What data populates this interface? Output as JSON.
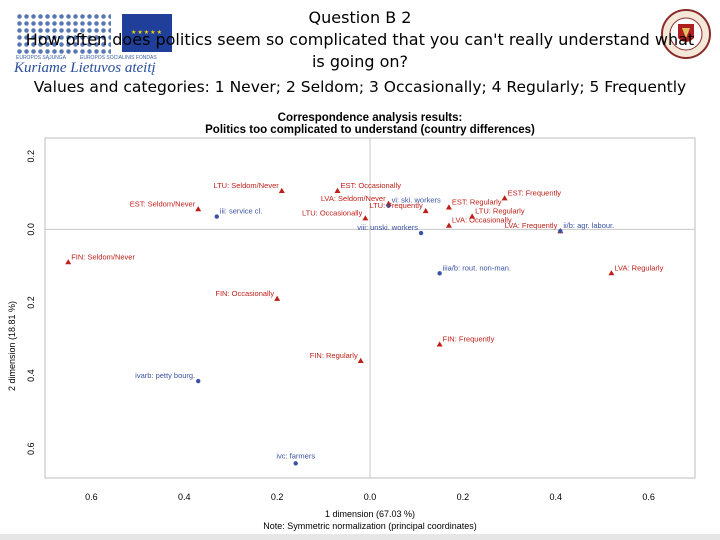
{
  "header": {
    "question": "Question B 2",
    "title_line1": "How often does politics seem so complicated that you can't really understand what",
    "title_line2": "is going on?",
    "values_line": "Values and categories: 1 Never; 2 Seldom; 3 Occasionally; 4 Regularly; 5 Frequently"
  },
  "logos": {
    "left_tagline": "Kuriame Lietuvos ateitį",
    "left_small1": "EUROPOS SĄJUNGA",
    "left_small2": "EUROPOS SOCIALINIS FONDAS"
  },
  "colors": {
    "red": "#c0201a",
    "blue": "#3a52a3",
    "axis_line": "#c8c8c8"
  },
  "chart_data": {
    "type": "scatter",
    "title": "Correspondence analysis results:",
    "subtitle": "Politics too complicated to understand (country differences)",
    "xlabel": "1 dimension (67.03 %)",
    "ylabel": "2 dimension (18.81 %)",
    "note": "Note: Symmetric normalization (principal coordinates)",
    "xlim": [
      -0.7,
      0.7
    ],
    "ylim": [
      -0.68,
      0.25
    ],
    "x_ticks": [
      {
        "value": -0.6,
        "label": "0.6"
      },
      {
        "value": -0.4,
        "label": "0.4"
      },
      {
        "value": -0.2,
        "label": "0.2"
      },
      {
        "value": 0.0,
        "label": "0.0"
      },
      {
        "value": 0.2,
        "label": "0.2"
      },
      {
        "value": 0.4,
        "label": "0.4"
      },
      {
        "value": 0.6,
        "label": "0.6"
      }
    ],
    "y_ticks": [
      {
        "value": 0.2,
        "label": "0.2"
      },
      {
        "value": 0.0,
        "label": "0.0"
      },
      {
        "value": -0.2,
        "label": "0.2"
      },
      {
        "value": -0.4,
        "label": "0.4"
      },
      {
        "value": -0.6,
        "label": "0.6"
      }
    ],
    "grid": false,
    "points": [
      {
        "label": "LTU: Seldom/Never",
        "x": -0.19,
        "y": 0.105,
        "group": "category",
        "anchor": "end"
      },
      {
        "label": "EST: Occasionally",
        "x": -0.07,
        "y": 0.105,
        "group": "category",
        "anchor": "start"
      },
      {
        "label": "LVA: Seldom/Never",
        "x": 0.04,
        "y": 0.07,
        "group": "category",
        "anchor": "end"
      },
      {
        "label": "vi: ski. workers",
        "x": 0.04,
        "y": 0.065,
        "group": "class",
        "anchor": "start"
      },
      {
        "label": "EST: Seldom/Never",
        "x": -0.37,
        "y": 0.055,
        "group": "category",
        "anchor": "end"
      },
      {
        "label": "LTU: Frequently",
        "x": 0.12,
        "y": 0.05,
        "group": "category",
        "anchor": "end"
      },
      {
        "label": "EST: Regularly",
        "x": 0.17,
        "y": 0.06,
        "group": "category",
        "anchor": "start"
      },
      {
        "label": "EST: Frequently",
        "x": 0.29,
        "y": 0.085,
        "group": "category",
        "anchor": "start"
      },
      {
        "label": "iii: service cl.",
        "x": -0.33,
        "y": 0.035,
        "group": "class",
        "anchor": "start"
      },
      {
        "label": "LTU: Occasionally",
        "x": -0.01,
        "y": 0.03,
        "group": "category",
        "anchor": "end"
      },
      {
        "label": "LTU: Regularly",
        "x": 0.22,
        "y": 0.035,
        "group": "category",
        "anchor": "start"
      },
      {
        "label": "LVA: Occasionally",
        "x": 0.17,
        "y": 0.01,
        "group": "category",
        "anchor": "start"
      },
      {
        "label": "viii: unski. workers",
        "x": 0.11,
        "y": -0.01,
        "group": "class",
        "anchor": "end"
      },
      {
        "label": "LVA: Frequently",
        "x": 0.41,
        "y": -0.005,
        "group": "category",
        "anchor": "end"
      },
      {
        "label": "ii/b: agr. labour.",
        "x": 0.41,
        "y": -0.005,
        "group": "class",
        "anchor": "start"
      },
      {
        "label": "FIN: Seldom/Never",
        "x": -0.65,
        "y": -0.09,
        "group": "category",
        "anchor": "start"
      },
      {
        "label": "iiia/b: rout. non-man.",
        "x": 0.15,
        "y": -0.12,
        "group": "class",
        "anchor": "start"
      },
      {
        "label": "LVA: Regularly",
        "x": 0.52,
        "y": -0.12,
        "group": "category",
        "anchor": "start"
      },
      {
        "label": "FIN: Occasionally",
        "x": -0.2,
        "y": -0.19,
        "group": "category",
        "anchor": "end"
      },
      {
        "label": "FIN: Frequently",
        "x": 0.15,
        "y": -0.315,
        "group": "category",
        "anchor": "start"
      },
      {
        "label": "FIN: Regularly",
        "x": -0.02,
        "y": -0.36,
        "group": "category",
        "anchor": "end"
      },
      {
        "label": "ivarb: petty bourg.",
        "x": -0.37,
        "y": -0.415,
        "group": "class",
        "anchor": "end"
      },
      {
        "label": "ivc: farmers",
        "x": -0.16,
        "y": -0.64,
        "group": "class",
        "anchor": "middle"
      }
    ]
  }
}
